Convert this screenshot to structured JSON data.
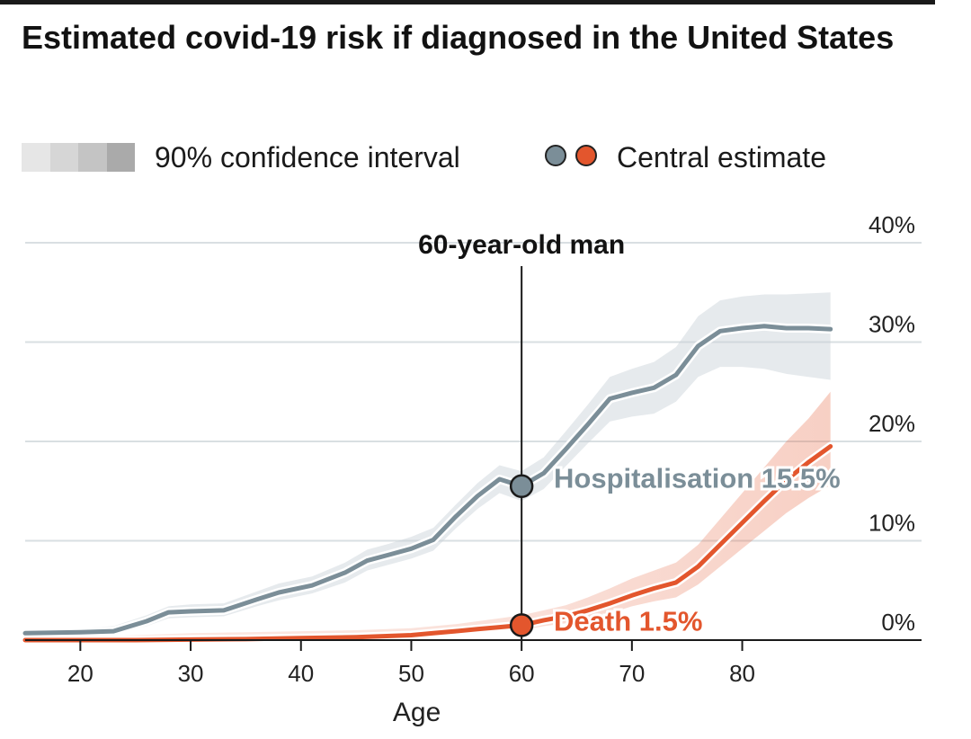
{
  "title": "Estimated covid-19 risk if diagnosed in the United States",
  "legend": {
    "ci_label": "90% confidence interval",
    "ci_colors": [
      "#e6e6e6",
      "#d6d6d6",
      "#c4c4c4",
      "#aaaaaa"
    ],
    "central_label": "Central estimate"
  },
  "annotations": {
    "marker_label": "60-year-old man",
    "hospitalisation_label": "Hospitalisation 15.5%",
    "death_label": "Death 1.5%"
  },
  "chart_data": {
    "type": "line",
    "title": "Estimated covid-19 risk if diagnosed in the United States",
    "xlabel": "Age",
    "ylabel": "",
    "xlim": [
      15,
      95
    ],
    "ylim": [
      0,
      40
    ],
    "x_ticks": [
      20,
      30,
      40,
      50,
      60,
      70,
      80
    ],
    "y_ticks": [
      0,
      10,
      20,
      30,
      40
    ],
    "y_tick_labels": [
      "0%",
      "10%",
      "20%",
      "30%",
      "40%"
    ],
    "grid": true,
    "marker_x": 60,
    "series": [
      {
        "name": "Hospitalisation",
        "color": "#7b8e98",
        "x": [
          15,
          20,
          23,
          26,
          28,
          30,
          33,
          36,
          38,
          41,
          44,
          46,
          48,
          50,
          52,
          54,
          56,
          58,
          60,
          62,
          64,
          66,
          68,
          70,
          72,
          74,
          76,
          78,
          80,
          82,
          84,
          86,
          88
        ],
        "y": [
          0.7,
          0.8,
          0.9,
          1.9,
          2.8,
          2.9,
          3.0,
          4.1,
          4.8,
          5.5,
          6.8,
          8.0,
          8.6,
          9.2,
          10.1,
          12.4,
          14.5,
          16.2,
          15.5,
          16.8,
          19.2,
          21.7,
          24.3,
          24.9,
          25.4,
          26.7,
          29.6,
          31.1,
          31.4,
          31.6,
          31.4,
          31.4,
          31.3
        ],
        "ci_low": [
          0.4,
          0.5,
          0.6,
          1.4,
          2.2,
          2.3,
          2.4,
          3.4,
          4.0,
          4.7,
          5.8,
          7.0,
          7.6,
          8.2,
          9.0,
          11.2,
          13.2,
          14.8,
          14.0,
          15.2,
          17.5,
          19.8,
          22.0,
          22.5,
          22.8,
          24.0,
          26.5,
          27.5,
          27.5,
          27.3,
          26.8,
          26.5,
          26.2
        ],
        "ci_high": [
          1.0,
          1.2,
          1.4,
          2.5,
          3.4,
          3.6,
          3.7,
          4.9,
          5.7,
          6.4,
          7.8,
          9.1,
          9.7,
          10.4,
          11.3,
          13.6,
          15.8,
          17.6,
          17.0,
          18.4,
          21.0,
          23.7,
          26.5,
          27.3,
          28.0,
          29.5,
          32.6,
          34.2,
          34.6,
          34.8,
          34.8,
          34.9,
          35.0
        ]
      },
      {
        "name": "Death",
        "color": "#e3562d",
        "x": [
          15,
          20,
          25,
          30,
          35,
          40,
          45,
          50,
          52,
          54,
          56,
          58,
          60,
          62,
          64,
          66,
          68,
          70,
          72,
          74,
          76,
          78,
          80,
          82,
          84,
          86,
          88
        ],
        "y": [
          0.0,
          0.0,
          0.0,
          0.05,
          0.1,
          0.2,
          0.3,
          0.5,
          0.7,
          0.9,
          1.1,
          1.3,
          1.5,
          2.0,
          2.4,
          3.0,
          3.7,
          4.5,
          5.2,
          5.8,
          7.4,
          9.6,
          11.8,
          14.0,
          16.1,
          17.9,
          19.5
        ],
        "ci_low": [
          0.0,
          0.0,
          0.0,
          0.0,
          0.05,
          0.1,
          0.2,
          0.3,
          0.5,
          0.6,
          0.8,
          0.9,
          1.0,
          1.4,
          1.7,
          2.2,
          2.7,
          3.4,
          3.9,
          4.3,
          5.6,
          7.4,
          9.2,
          11.0,
          12.8,
          14.3,
          15.6
        ],
        "ci_high": [
          0.2,
          0.3,
          0.5,
          0.7,
          0.8,
          0.9,
          1.0,
          1.2,
          1.4,
          1.6,
          1.9,
          2.2,
          2.5,
          3.0,
          3.5,
          4.3,
          5.2,
          6.2,
          7.0,
          7.8,
          9.6,
          12.2,
          14.8,
          17.4,
          20.0,
          22.3,
          25.0
        ]
      }
    ],
    "points": [
      {
        "series": "Hospitalisation",
        "x": 60,
        "y": 15.5
      },
      {
        "series": "Death",
        "x": 60,
        "y": 1.5
      }
    ]
  }
}
